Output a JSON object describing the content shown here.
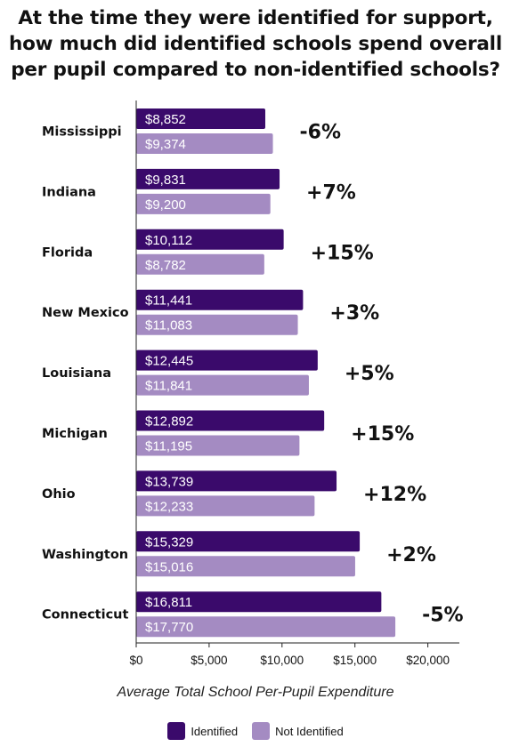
{
  "title_lines": [
    "At the time they were identified for support,",
    "how much did identified schools spend overall",
    "per pupil compared to non-identified schools?"
  ],
  "colors": {
    "identified": "#3a0a6b",
    "not_identified": "#a48bc2"
  },
  "chart_data": {
    "type": "bar",
    "orientation": "horizontal",
    "title": "At the time they were identified for support, how much did identified schools spend overall per pupil compared to non-identified schools?",
    "xlabel": "Average Total School Per-Pupil Expenditure",
    "ylabel": "",
    "xlim": [
      0,
      22000
    ],
    "x_ticks": [
      0,
      5000,
      10000,
      15000,
      20000
    ],
    "x_tick_labels": [
      "$0",
      "$5,000",
      "$10,000",
      "$15,000",
      "$20,000"
    ],
    "categories": [
      "Mississippi",
      "Indiana",
      "Florida",
      "New Mexico",
      "Louisiana",
      "Michigan",
      "Ohio",
      "Washington",
      "Connecticut"
    ],
    "series": [
      {
        "name": "Identified",
        "values": [
          8852,
          9831,
          10112,
          11441,
          12445,
          12892,
          13739,
          15329,
          16811
        ],
        "labels": [
          "$8,852",
          "$9,831",
          "$10,112",
          "$11,441",
          "$12,445",
          "$12,892",
          "$13,739",
          "$15,329",
          "$16,811"
        ]
      },
      {
        "name": "Not Identified",
        "values": [
          9374,
          9200,
          8782,
          11083,
          11841,
          11195,
          12233,
          15016,
          17770
        ],
        "labels": [
          "$9,374",
          "$9,200",
          "$8,782",
          "$11,083",
          "$11,841",
          "$11,195",
          "$12,233",
          "$15,016",
          "$17,770"
        ]
      }
    ],
    "differences": [
      "-6%",
      "+7%",
      "+15%",
      "+3%",
      "+5%",
      "+15%",
      "+12%",
      "+2%",
      "-5%"
    ],
    "grid": false,
    "legend_position": "bottom-center"
  }
}
